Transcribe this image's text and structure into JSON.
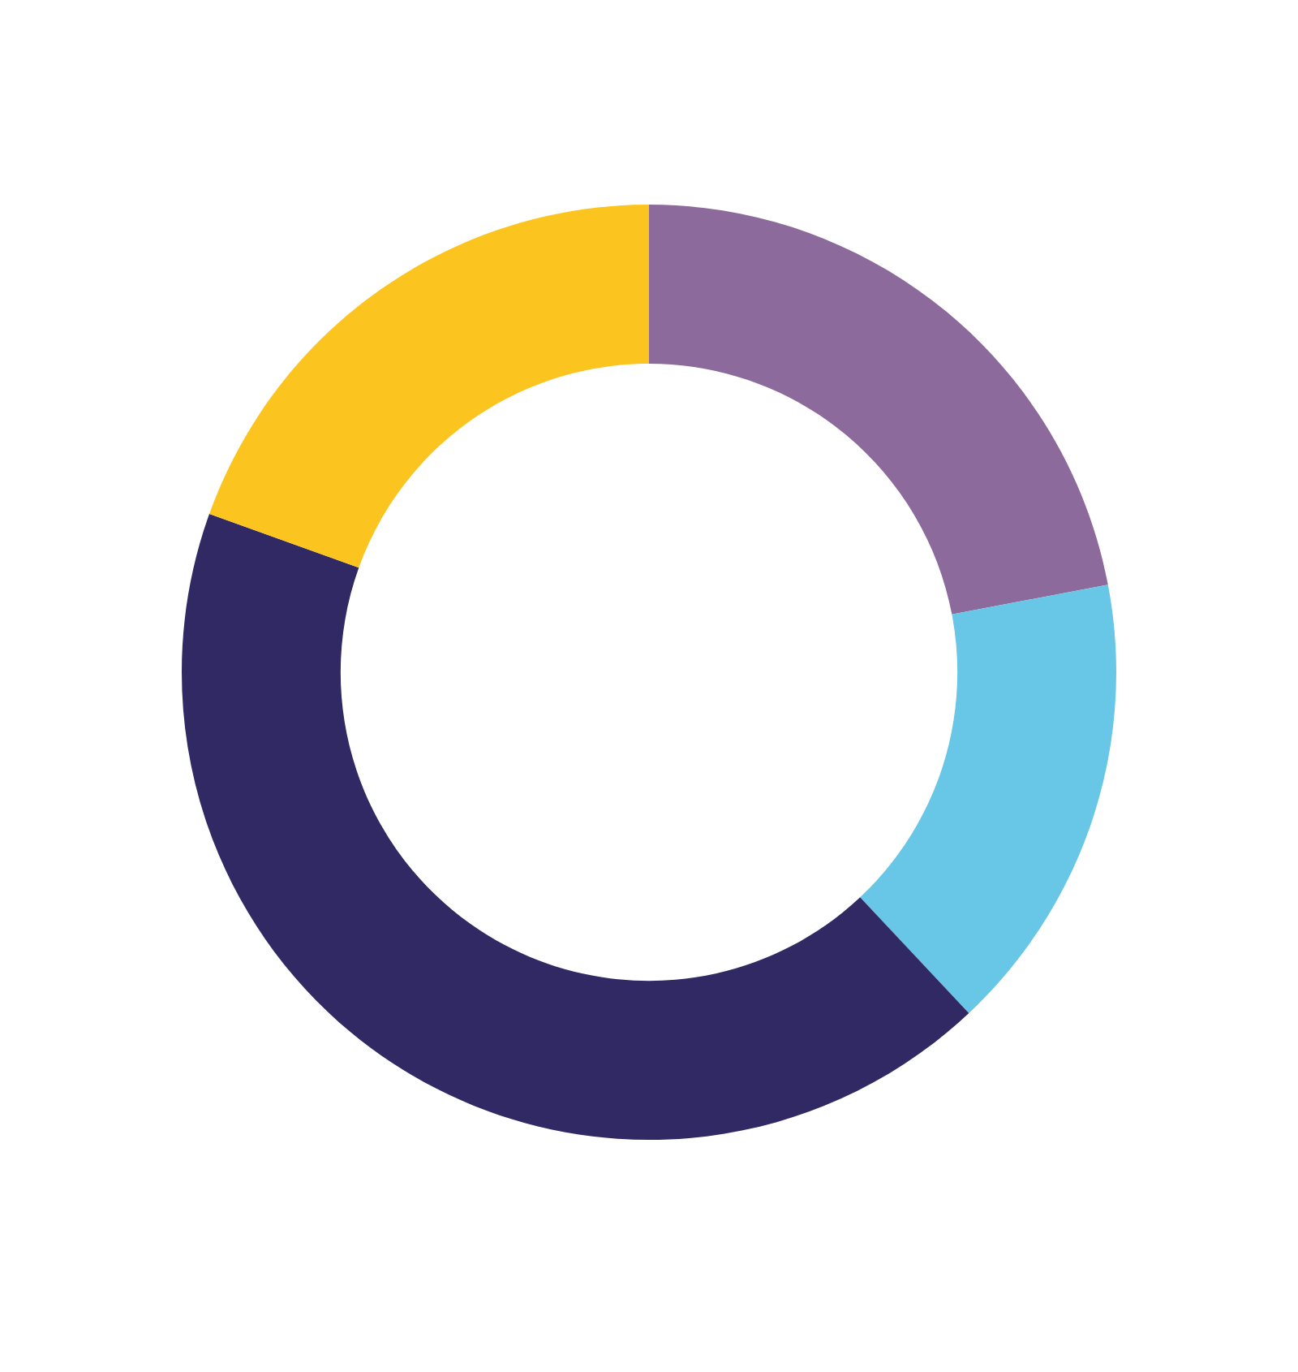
{
  "chart_data": {
    "type": "donut",
    "categories": [
      null,
      null,
      null,
      null
    ],
    "values": [
      22,
      16,
      42.5,
      19.5
    ],
    "colors": [
      "#8c6a9c",
      "#68c6e6",
      "#312963",
      "#fcc41e"
    ]
  }
}
